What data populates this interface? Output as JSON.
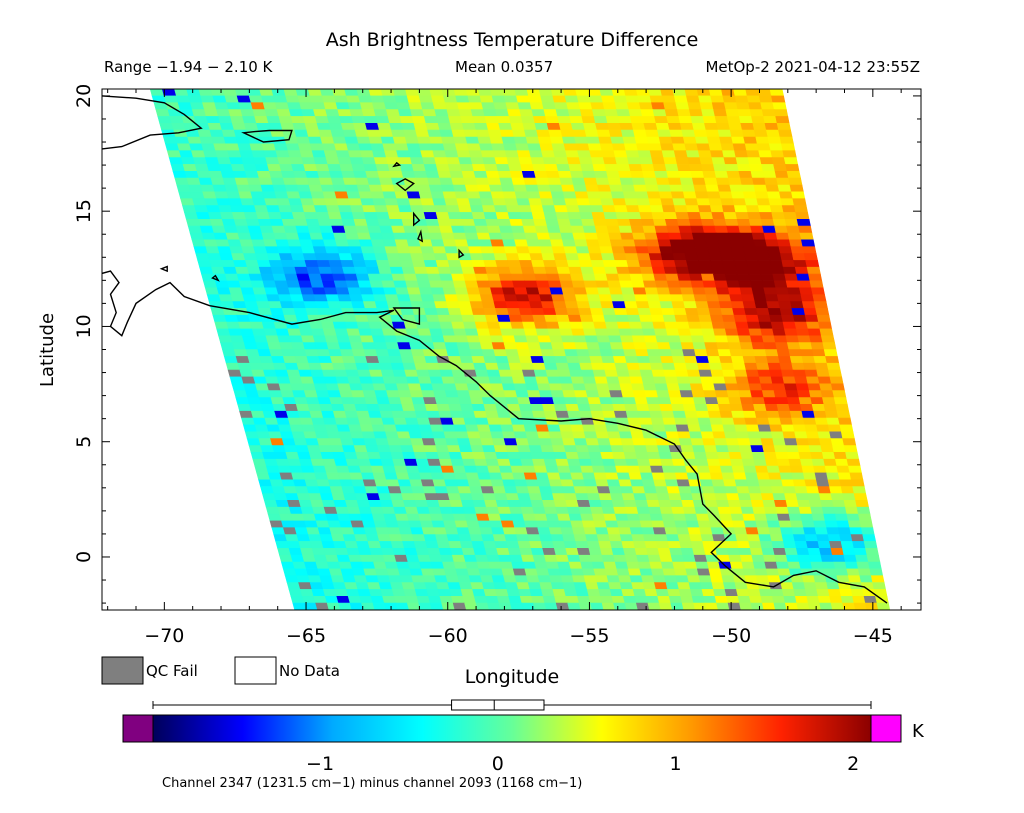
{
  "chart_data": {
    "type": "heatmap",
    "title": "Ash Brightness Temperature Difference",
    "range_label": "Range −1.94 − 2.10 K",
    "mean_label": "Mean 0.0357",
    "sensor_label": "MetOp-2 2021-04-12 23:55Z",
    "xlabel": "Longitude",
    "ylabel": "Latitude",
    "xlim": [
      -72.2,
      -43.3
    ],
    "ylim": [
      -2.3,
      20.3
    ],
    "x_ticks": [
      -70,
      -65,
      -60,
      -55,
      -50,
      -45
    ],
    "x_tick_labels": [
      "−70",
      "−65",
      "−60",
      "−55",
      "−50",
      "−45"
    ],
    "y_ticks": [
      0,
      5,
      10,
      15,
      20
    ],
    "y_tick_labels": [
      "0",
      "5",
      "10",
      "15",
      "20"
    ],
    "swath_corners": {
      "top_left": [
        -70.5,
        20.3
      ],
      "top_right": [
        -48.2,
        20.3
      ],
      "bottom_right": [
        -44.4,
        -2.3
      ],
      "bottom_left": [
        -65.4,
        -2.3
      ]
    },
    "hotspots": [
      {
        "lon": -49.2,
        "lat": 12.8,
        "value": 2.0
      },
      {
        "lon": -51.5,
        "lat": 13.2,
        "value": 1.7
      },
      {
        "lon": -57.3,
        "lat": 11.3,
        "value": 1.8
      },
      {
        "lon": -48.5,
        "lat": 10.5,
        "value": 1.5
      },
      {
        "lon": -48.2,
        "lat": 7.3,
        "value": 1.1
      },
      {
        "lon": -64.5,
        "lat": 12.2,
        "value": -1.1
      },
      {
        "lon": -46.5,
        "lat": 0.5,
        "value": -1.2
      }
    ],
    "colorbar": {
      "vmin": -1.94,
      "vmax": 2.1,
      "ticks": [
        -1,
        0,
        1,
        2
      ],
      "tick_labels": [
        "−1",
        "0",
        "1",
        "2"
      ],
      "unit": "K",
      "low_color": "#800080",
      "high_color": "#ff00ff",
      "stops": [
        "#00005a",
        "#0000ff",
        "#00aaff",
        "#00ffff",
        "#66ff99",
        "#ffff00",
        "#ff9900",
        "#ff2200",
        "#8b0000"
      ],
      "boxplot": {
        "min": -1.94,
        "q1": -0.26,
        "median": -0.02,
        "q3": 0.26,
        "max": 2.1
      }
    },
    "channel_label": "Channel 2347 (1231.5 cm−1) minus channel 2093 (1168 cm−1)"
  },
  "legend": {
    "qc_fail_label": "QC Fail",
    "qc_fail_color": "#7f7f7f",
    "no_data_label": "No Data",
    "no_data_color": "#ffffff"
  }
}
